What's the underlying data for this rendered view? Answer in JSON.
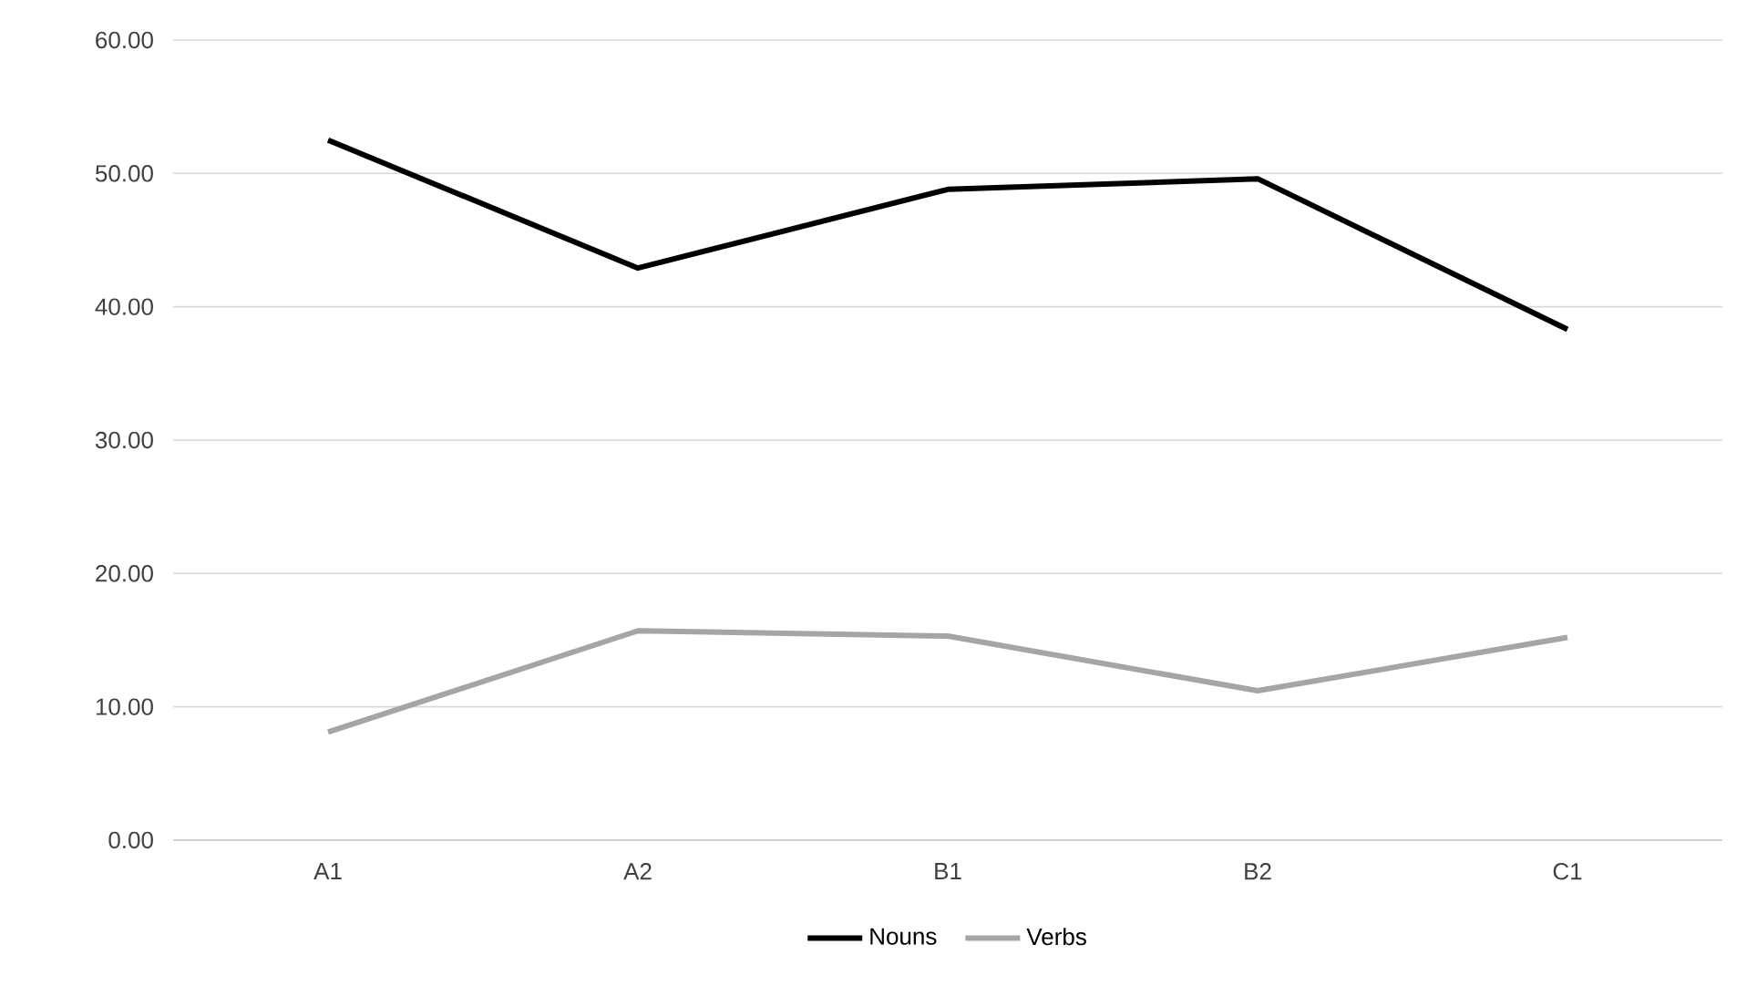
{
  "chart_data": {
    "type": "line",
    "categories": [
      "A1",
      "A2",
      "B1",
      "B2",
      "C1"
    ],
    "series": [
      {
        "name": "Nouns",
        "color": "#000000",
        "values": [
          52.5,
          42.9,
          48.8,
          49.6,
          38.3
        ]
      },
      {
        "name": "Verbs",
        "color": "#a5a5a5",
        "values": [
          8.1,
          15.7,
          15.3,
          11.2,
          15.2
        ]
      }
    ],
    "ylim": [
      0,
      60
    ],
    "yticks": [
      {
        "value": 0,
        "label": "0.00"
      },
      {
        "value": 10,
        "label": "10.00"
      },
      {
        "value": 20,
        "label": "20.00"
      },
      {
        "value": 30,
        "label": "30.00"
      },
      {
        "value": 40,
        "label": "40.00"
      },
      {
        "value": 50,
        "label": "50.00"
      },
      {
        "value": 60,
        "label": "60.00"
      }
    ],
    "grid": "y",
    "legend": "bottom",
    "marker": "none",
    "line_style": "solid"
  }
}
